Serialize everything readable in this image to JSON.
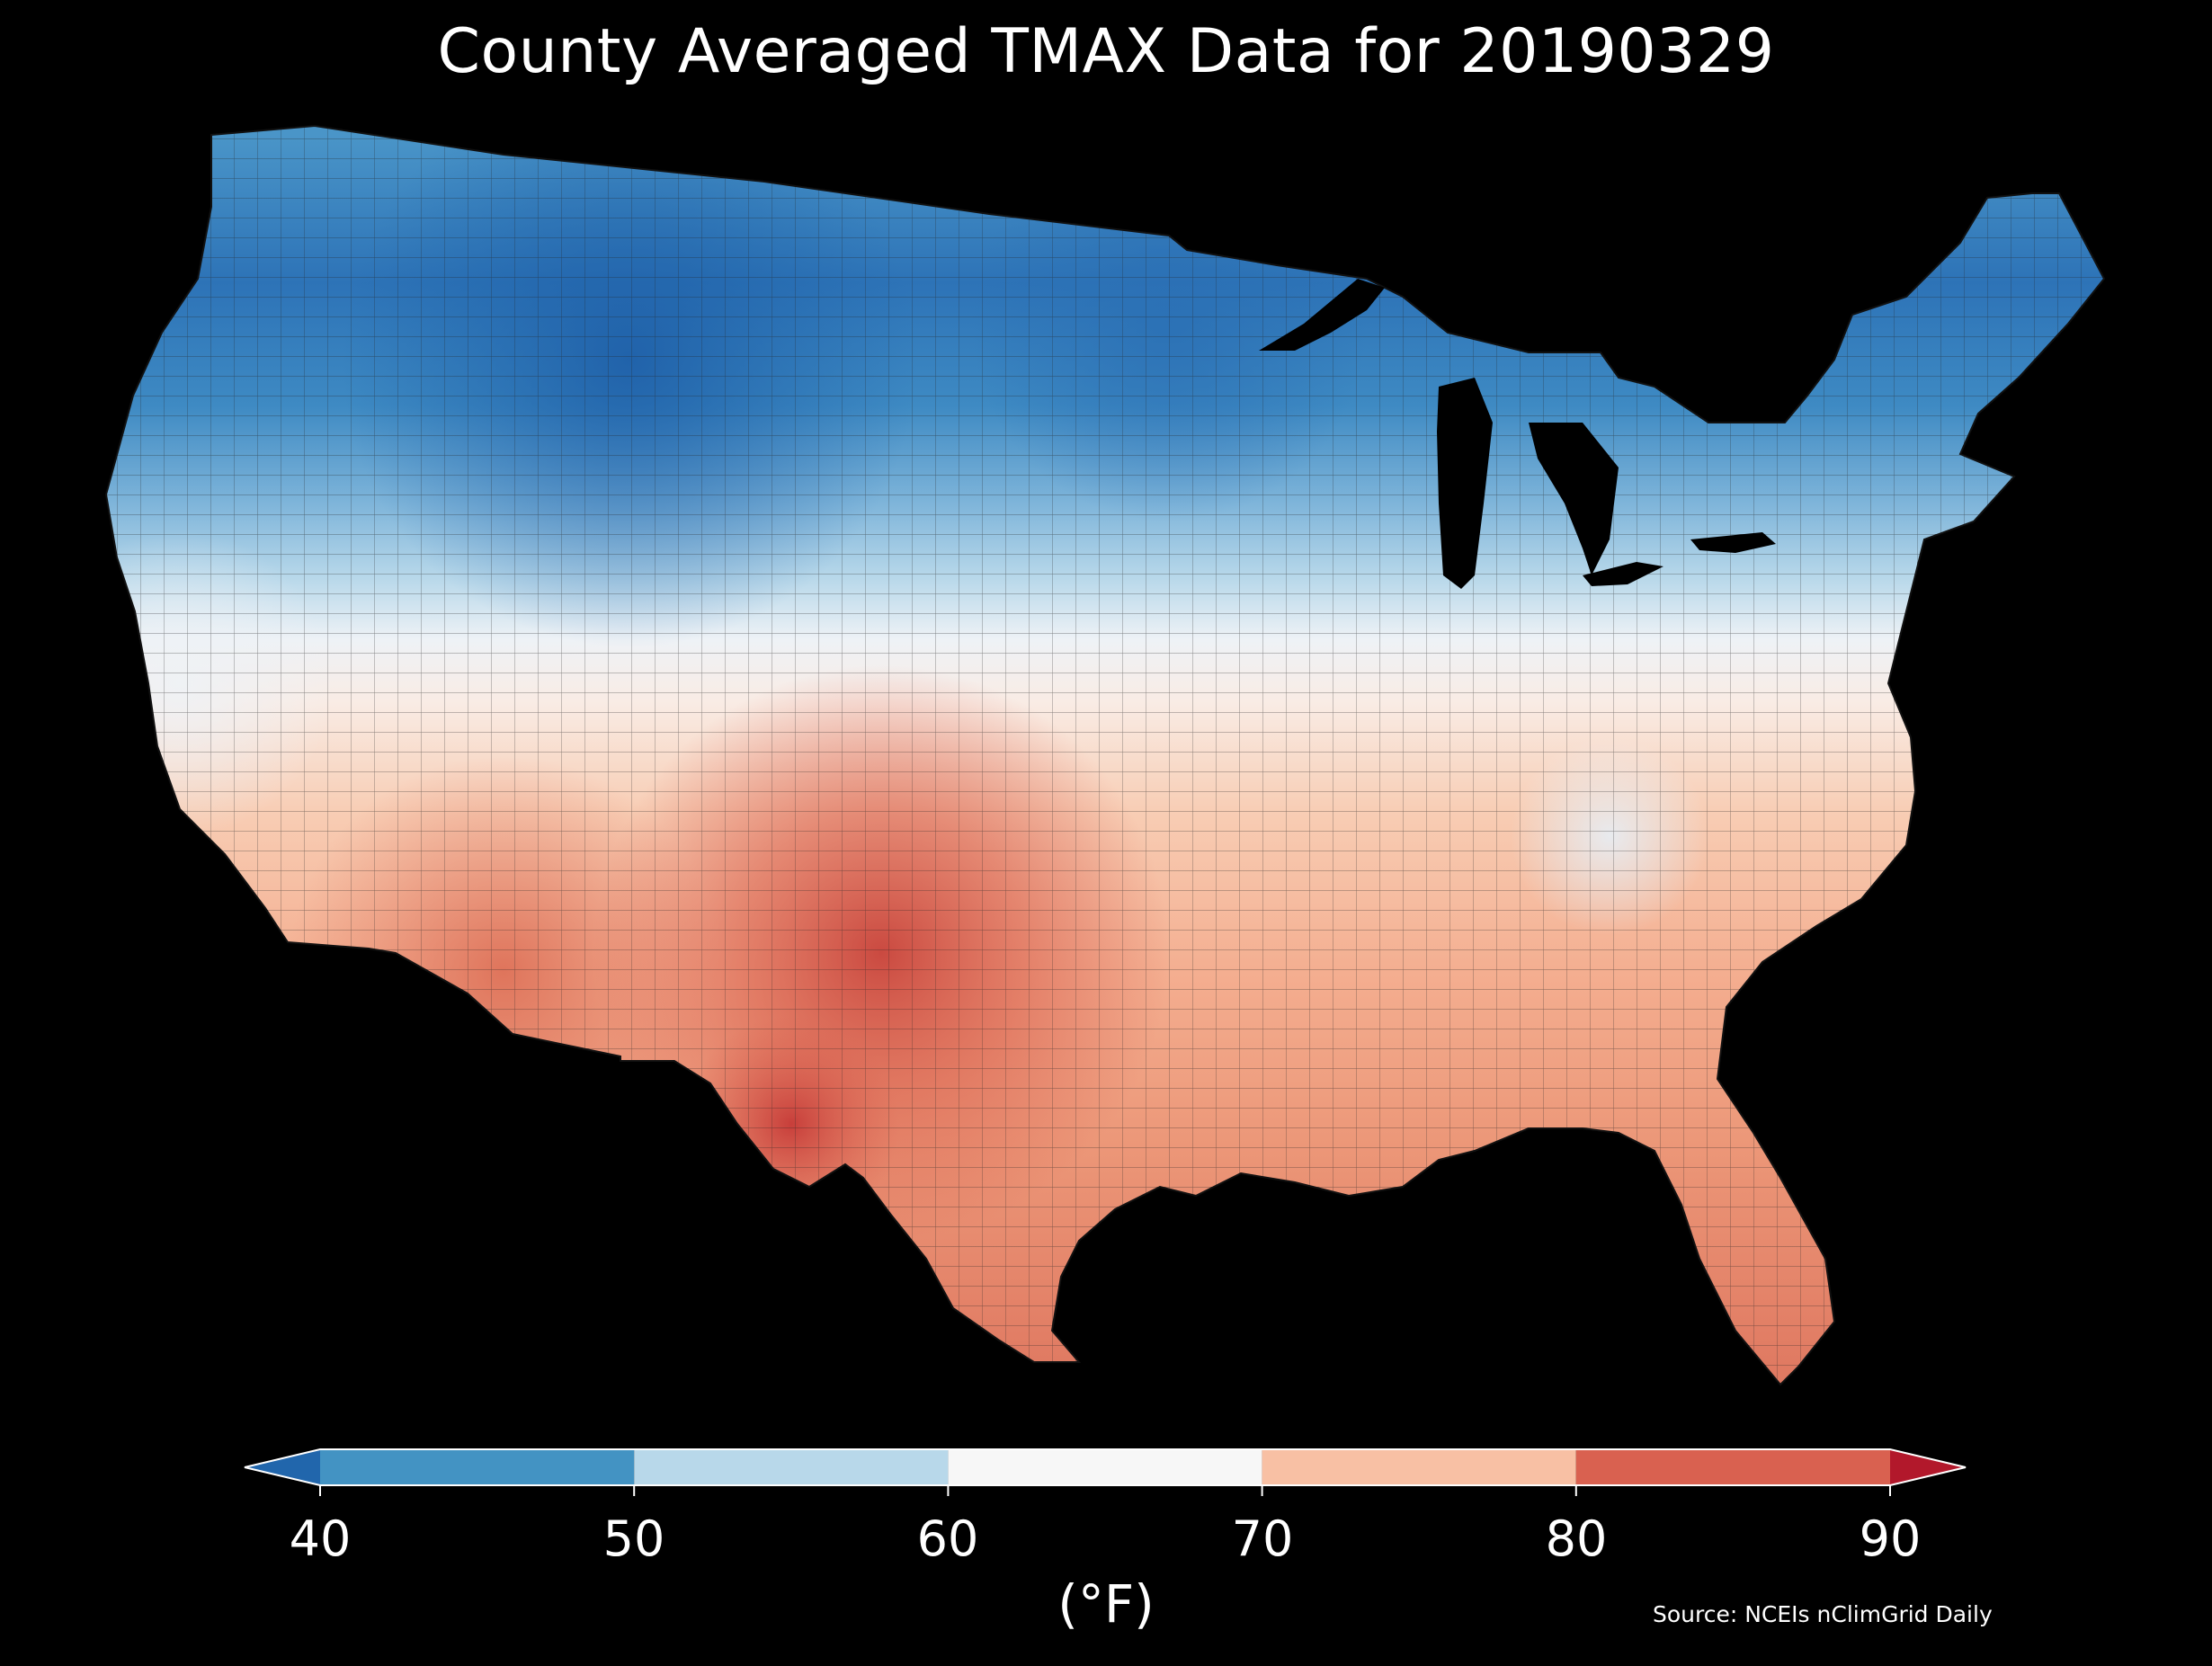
{
  "title": "County Averaged TMAX Data for 20190329",
  "source": "Source: NCEIs nClimGrid Daily",
  "colorbar": {
    "label": "(°F)",
    "ticks": [
      "40",
      "50",
      "60",
      "70",
      "80",
      "90"
    ],
    "bins": [
      {
        "range": [
          null,
          40
        ],
        "color": "#2166ac",
        "extend": "min"
      },
      {
        "range": [
          40,
          50
        ],
        "color": "#4393c3"
      },
      {
        "range": [
          50,
          60
        ],
        "color": "#b8d8ea"
      },
      {
        "range": [
          60,
          70
        ],
        "color": "#f7f7f7"
      },
      {
        "range": [
          70,
          80
        ],
        "color": "#f8c0a4"
      },
      {
        "range": [
          80,
          90
        ],
        "color": "#d96150"
      },
      {
        "range": [
          90,
          null
        ],
        "color": "#b2182b",
        "extend": "max"
      }
    ]
  },
  "map": {
    "region": "Contiguous United States",
    "variable": "TMAX",
    "units": "°F",
    "background_color": "#000000",
    "county_border_color": "#222222"
  }
}
